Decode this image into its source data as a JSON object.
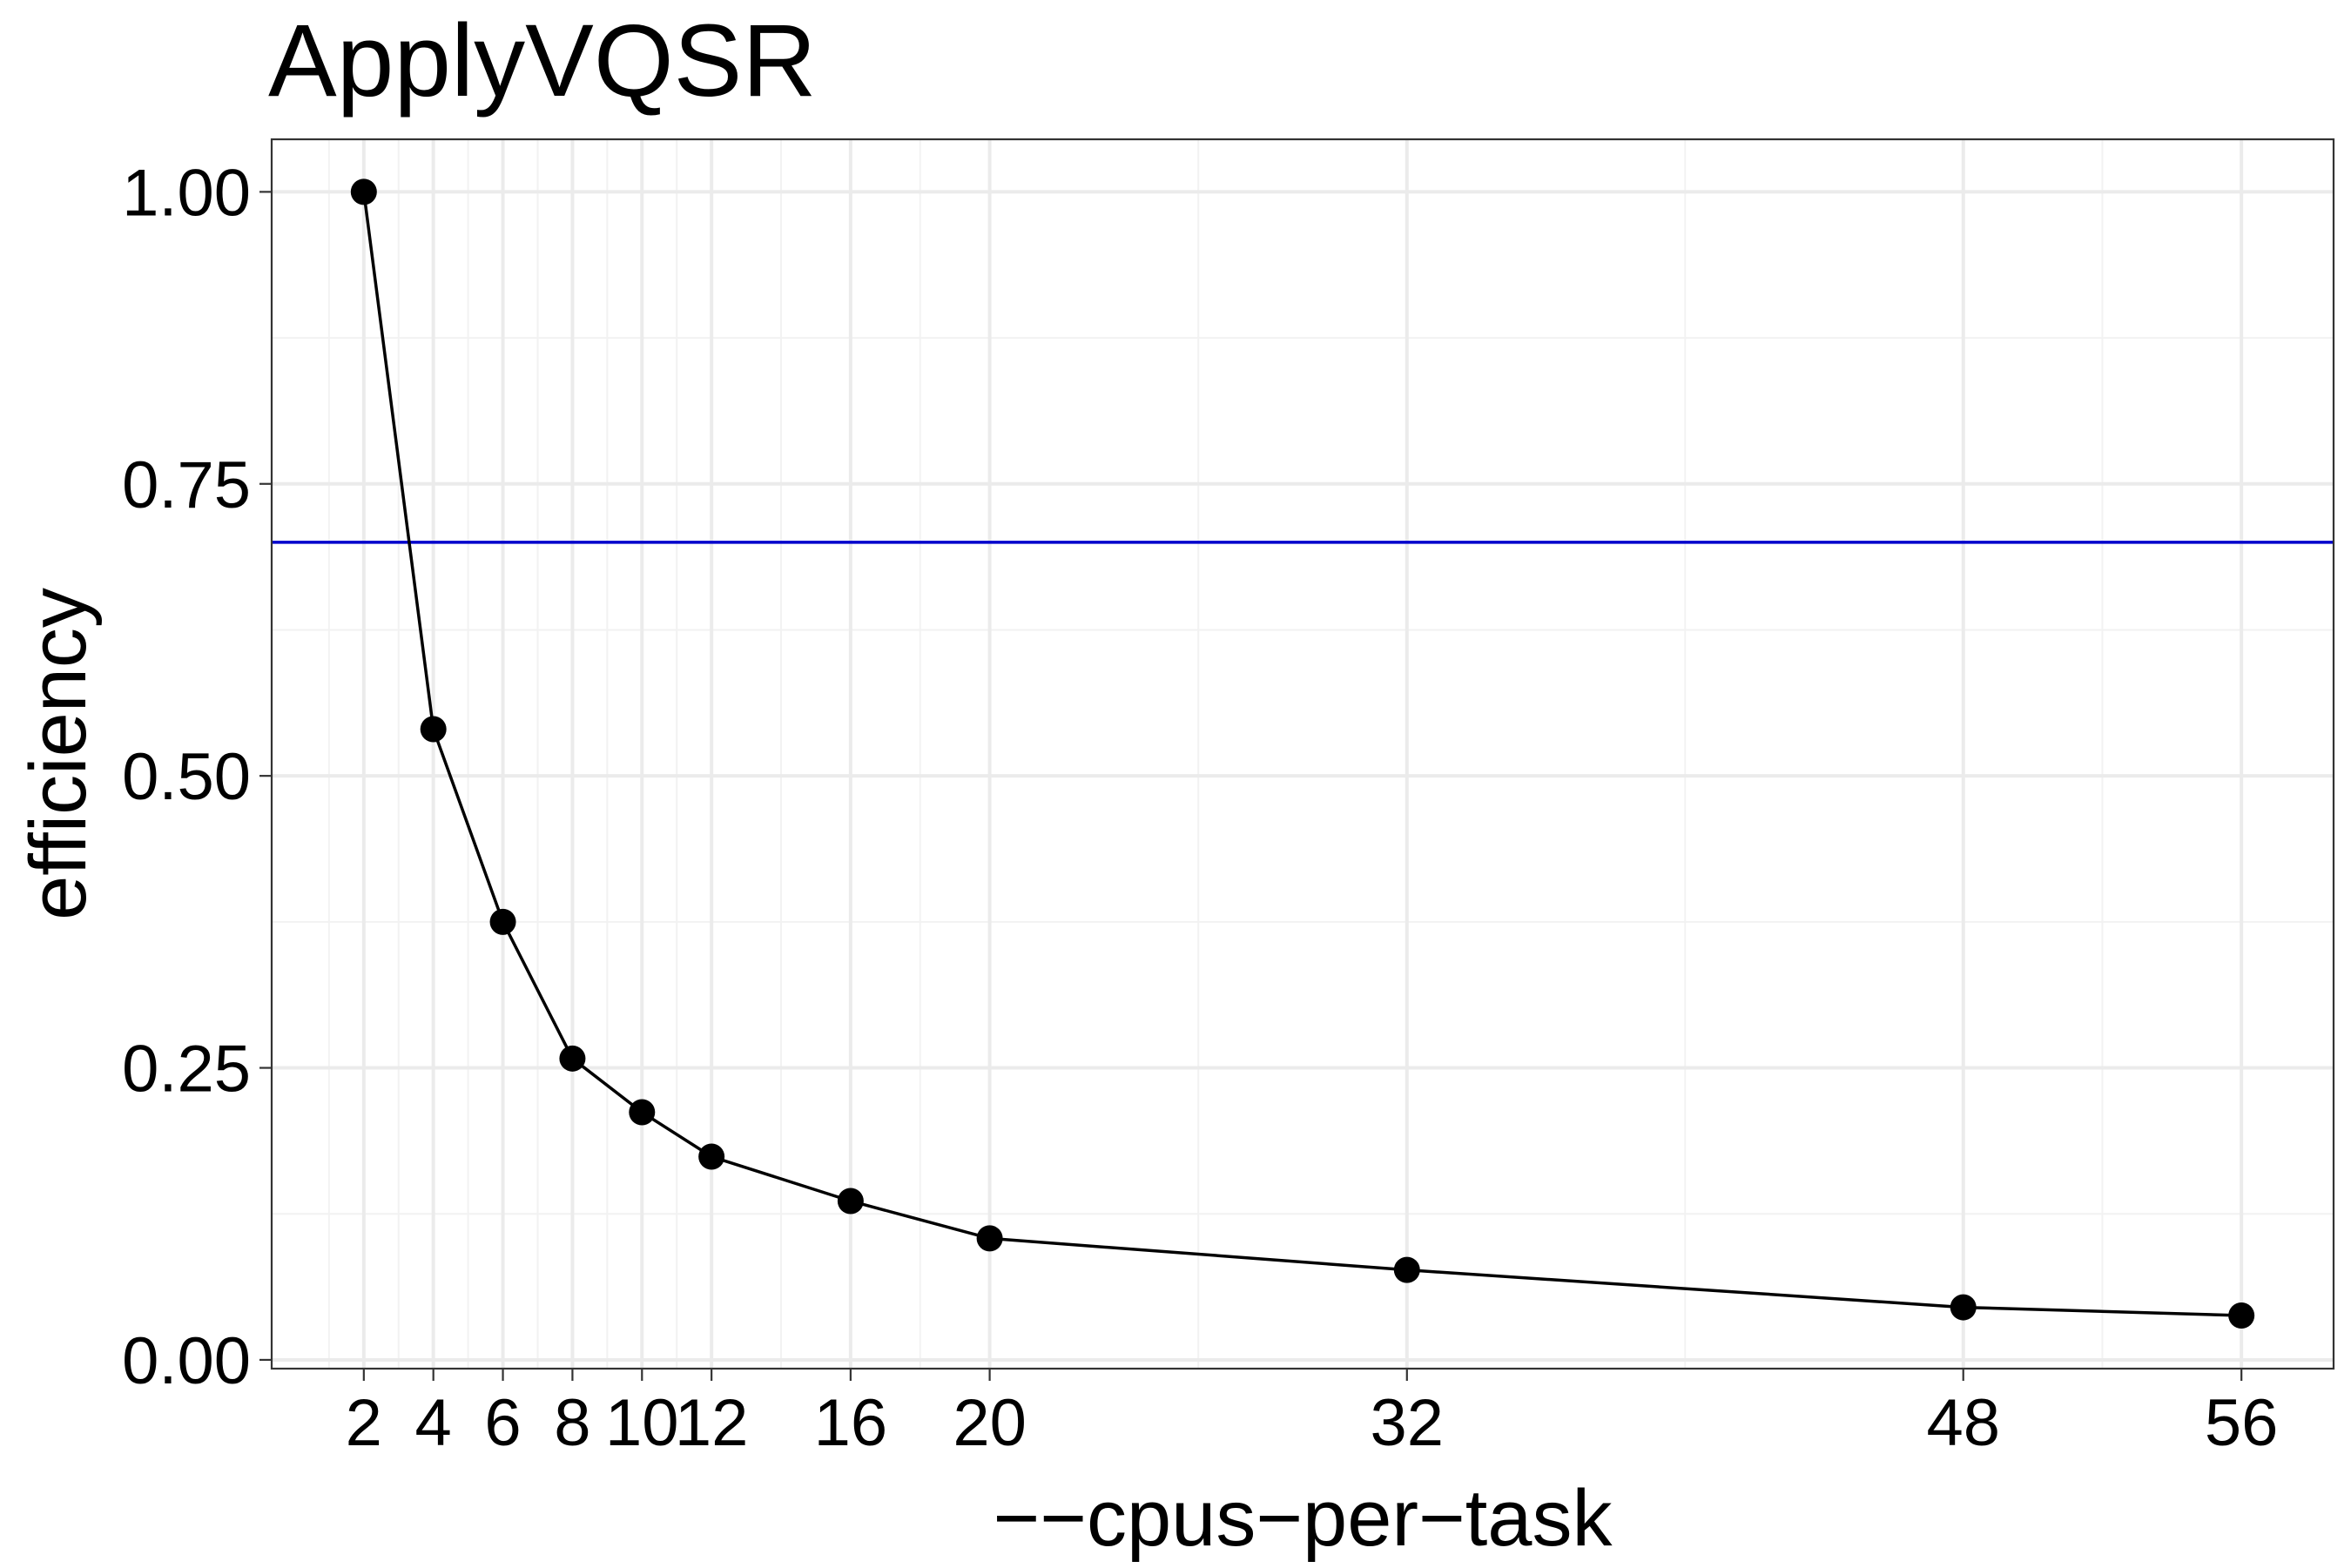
{
  "chart_data": {
    "type": "line",
    "title": "ApplyVQSR",
    "xlabel": "−−cpus−per−task",
    "ylabel": "efficiency",
    "x_ticks": [
      2,
      4,
      6,
      8,
      10,
      12,
      16,
      20,
      32,
      48,
      56
    ],
    "x_tick_labels": [
      "2",
      "4",
      "6",
      "8",
      "10",
      "12",
      "16",
      "20",
      "32",
      "48",
      "56"
    ],
    "y_ticks": [
      0.0,
      0.25,
      0.5,
      0.75,
      1.0
    ],
    "y_tick_labels": [
      "0.00",
      "0.25",
      "0.50",
      "0.75",
      "1.00"
    ],
    "xlim": [
      -0.65,
      58.65
    ],
    "ylim": [
      -0.0075,
      1.045
    ],
    "grid": true,
    "series": [
      {
        "color": "#000000",
        "x": [
          2,
          4,
          6,
          8,
          10,
          12,
          16,
          20,
          32,
          48,
          56
        ],
        "y": [
          1.0,
          0.54,
          0.375,
          0.258,
          0.212,
          0.174,
          0.136,
          0.104,
          0.077,
          0.045,
          0.038
        ]
      }
    ],
    "reference_line": {
      "orientation": "horizontal",
      "y": 0.7,
      "color": "#0000cc"
    }
  }
}
